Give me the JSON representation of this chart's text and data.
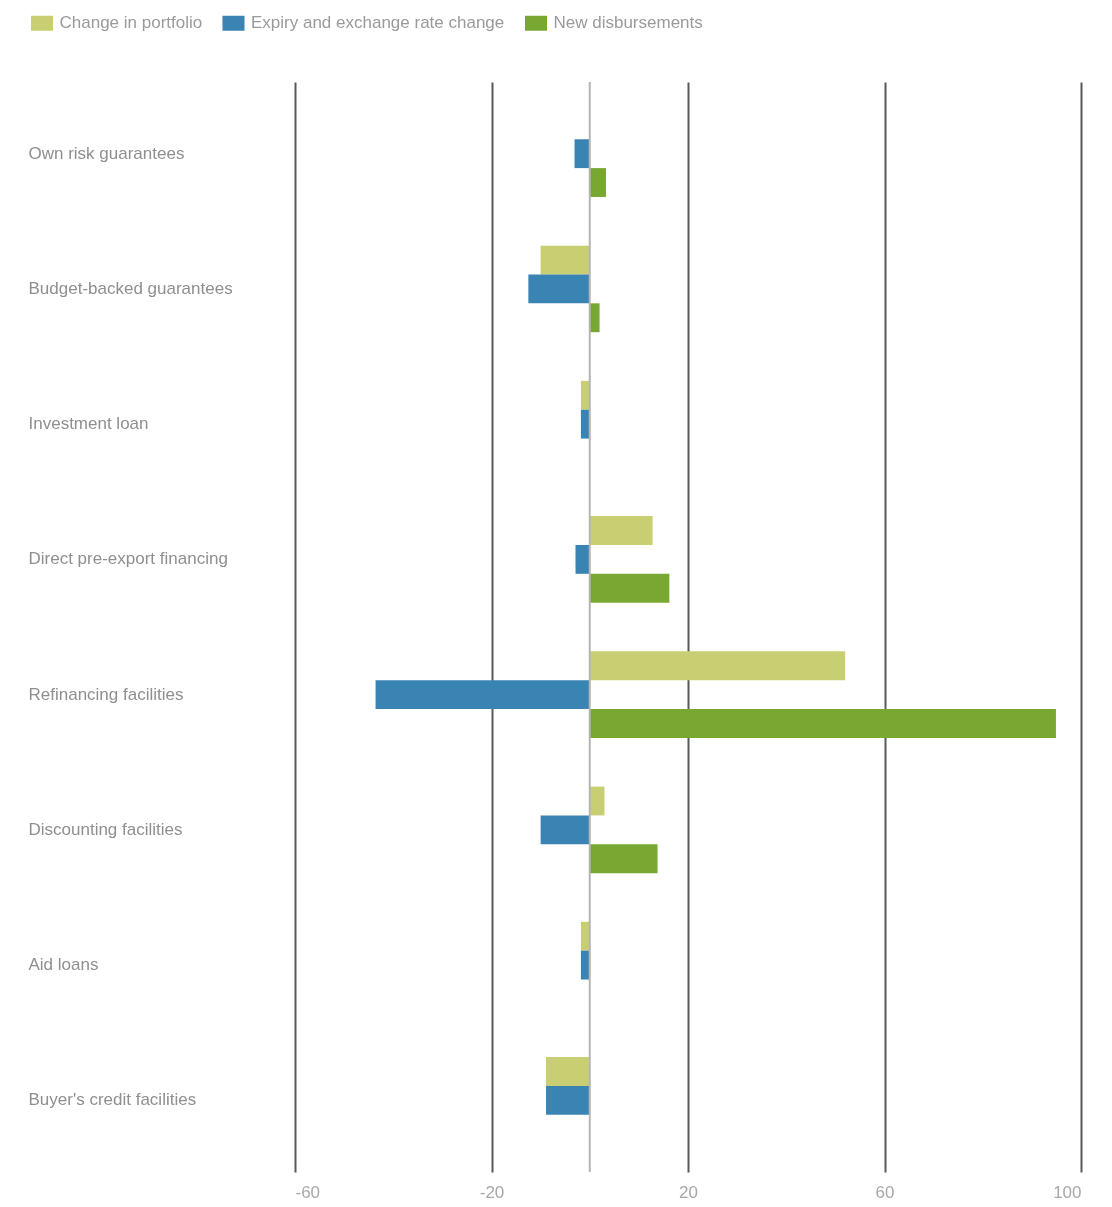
{
  "chart_data": {
    "type": "bar",
    "orientation": "horizontal",
    "categories": [
      "Own risk guarantees",
      "Budget-backed guarantees",
      "Investment loan",
      "Direct pre-export financing",
      "Refinancing facilities",
      "Discounting facilities",
      "Aid loans",
      "Buyer's credit facilities"
    ],
    "series": [
      {
        "name": "Change in portfolio",
        "color": "#c8cf72",
        "values": [
          null,
          -10.0,
          -1.8,
          12.8,
          52.0,
          3.0,
          -1.8,
          -8.9
        ]
      },
      {
        "name": "Expiry and exchange rate change",
        "color": "#3a84b4",
        "values": [
          -3.1,
          -12.5,
          -1.8,
          -2.9,
          -43.6,
          -10.0,
          -1.8,
          -8.9
        ]
      },
      {
        "name": "New disbursements",
        "color": "#78a832",
        "values": [
          3.3,
          2.0,
          null,
          16.2,
          94.9,
          13.8,
          null,
          null
        ]
      }
    ],
    "xlim": [
      -60,
      100
    ],
    "xticks": [
      -60,
      -20,
      20,
      60,
      100
    ],
    "grid": "x",
    "legend": "top left",
    "ref_lines": [
      {
        "axis": "x",
        "value": 0,
        "color": "#b4b4b4"
      }
    ]
  }
}
